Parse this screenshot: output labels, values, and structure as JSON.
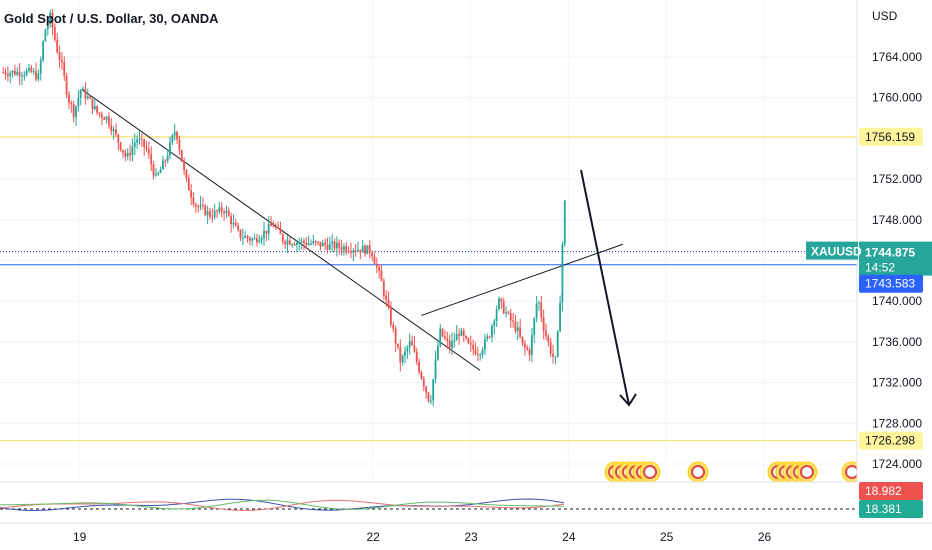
{
  "chart_data": {
    "type": "candlestick",
    "title": "Gold Spot / U.S. Dollar, 30, OANDA",
    "currency": "USD",
    "symbol": "XAUUSD",
    "ylim": [
      1720,
      1767
    ],
    "y_ticks": [
      "1764.000",
      "1760.000",
      "1756.000",
      "1752.000",
      "1748.000",
      "1744.000",
      "1740.000",
      "1736.000",
      "1732.000",
      "1728.000",
      "1724.000"
    ],
    "x_ticks": [
      {
        "label": "19",
        "day": 19.0
      },
      {
        "label": "22",
        "day": 22.0
      },
      {
        "label": "23",
        "day": 23.0
      },
      {
        "label": "24",
        "day": 24.0
      },
      {
        "label": "25",
        "day": 25.0
      },
      {
        "label": "26",
        "day": 26.0
      }
    ],
    "xlim": [
      18.53,
      26.2
    ],
    "price_path": [
      {
        "day": 18.53,
        "price": 1762.5
      },
      {
        "day": 18.6,
        "price": 1762.0
      },
      {
        "day": 18.66,
        "price": 1766.5
      },
      {
        "day": 18.72,
        "price": 1768.0
      },
      {
        "day": 18.78,
        "price": 1765.0
      },
      {
        "day": 18.84,
        "price": 1763.0
      },
      {
        "day": 18.9,
        "price": 1760.0
      },
      {
        "day": 18.96,
        "price": 1758.5
      },
      {
        "day": 19.03,
        "price": 1760.8
      },
      {
        "day": 19.1,
        "price": 1760.0
      },
      {
        "day": 19.2,
        "price": 1758.5
      },
      {
        "day": 19.3,
        "price": 1758.0
      },
      {
        "day": 19.4,
        "price": 1756.0
      },
      {
        "day": 19.5,
        "price": 1754.0
      },
      {
        "day": 19.6,
        "price": 1756.0
      },
      {
        "day": 19.7,
        "price": 1755.0
      },
      {
        "day": 19.8,
        "price": 1752.0
      },
      {
        "day": 19.9,
        "price": 1754.0
      },
      {
        "day": 20.0,
        "price": 1757.0
      },
      {
        "day": 20.1,
        "price": 1752.0
      },
      {
        "day": 20.2,
        "price": 1749.5
      },
      {
        "day": 20.35,
        "price": 1748.5
      },
      {
        "day": 20.5,
        "price": 1749.0
      },
      {
        "day": 20.65,
        "price": 1746.5
      },
      {
        "day": 20.8,
        "price": 1746.0
      },
      {
        "day": 21.0,
        "price": 1747.5
      },
      {
        "day": 21.1,
        "price": 1746.0
      },
      {
        "day": 22.0,
        "price": 1745.0
      },
      {
        "day": 22.1,
        "price": 1742.0
      },
      {
        "day": 22.2,
        "price": 1738.0
      },
      {
        "day": 22.3,
        "price": 1734.0
      },
      {
        "day": 22.4,
        "price": 1736.0
      },
      {
        "day": 22.5,
        "price": 1733.0
      },
      {
        "day": 22.6,
        "price": 1730.0
      },
      {
        "day": 22.7,
        "price": 1737.0
      },
      {
        "day": 22.8,
        "price": 1735.5
      },
      {
        "day": 22.9,
        "price": 1737.0
      },
      {
        "day": 23.0,
        "price": 1735.5
      },
      {
        "day": 23.1,
        "price": 1735.0
      },
      {
        "day": 23.2,
        "price": 1736.5
      },
      {
        "day": 23.3,
        "price": 1740.0
      },
      {
        "day": 23.4,
        "price": 1738.5
      },
      {
        "day": 23.5,
        "price": 1737.0
      },
      {
        "day": 23.55,
        "price": 1735.5
      },
      {
        "day": 23.62,
        "price": 1735.0
      },
      {
        "day": 23.7,
        "price": 1740.5
      },
      {
        "day": 23.76,
        "price": 1737.5
      },
      {
        "day": 23.82,
        "price": 1735.5
      },
      {
        "day": 23.88,
        "price": 1734.0
      },
      {
        "day": 23.92,
        "price": 1738.0
      },
      {
        "day": 23.95,
        "price": 1745.0
      },
      {
        "day": 23.98,
        "price": 1750.0
      },
      {
        "day": 24.03,
        "price": 1750.5
      },
      {
        "day": 24.1,
        "price": 1748.0
      },
      {
        "day": 24.2,
        "price": 1747.0
      },
      {
        "day": 24.3,
        "price": 1746.0
      },
      {
        "day": 24.38,
        "price": 1744.9
      }
    ],
    "annotations": {
      "price_labels": [
        "1756.159",
        "1743.583",
        "1726.298"
      ],
      "last_price": "1744.875",
      "countdown": "14:52"
    },
    "indicator": {
      "values": [
        "18.982",
        "18.381"
      ],
      "colors": [
        "#ef5350",
        "#22ab94"
      ]
    }
  }
}
